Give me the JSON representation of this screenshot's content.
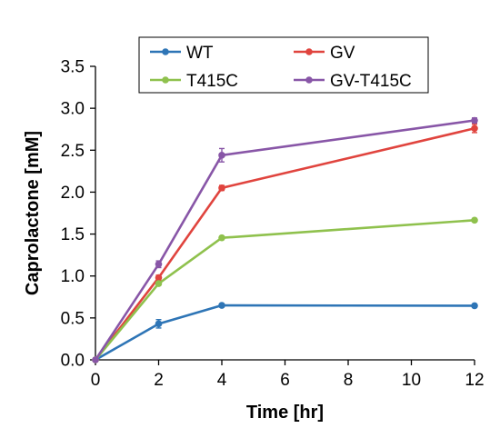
{
  "chart_data": {
    "type": "line",
    "xlabel": "Time [hr]",
    "ylabel": "Caprolactone [mM]",
    "x": [
      0,
      2,
      4,
      12
    ],
    "xlim": [
      0,
      12
    ],
    "ylim": [
      0,
      3.5
    ],
    "xticks": [
      "0",
      "2",
      "4",
      "6",
      "8",
      "10",
      "12"
    ],
    "yticks": [
      "0.0",
      "0.5",
      "1.0",
      "1.5",
      "2.0",
      "2.5",
      "3.0",
      "3.5"
    ],
    "grid": false,
    "legend_position": "top",
    "series": [
      {
        "name": "WT",
        "color": "#2e75b6",
        "values": [
          0,
          0.43,
          0.65,
          0.645
        ],
        "errors": [
          0,
          0.05,
          0.02,
          0.02
        ]
      },
      {
        "name": "GV",
        "color": "#e0443e",
        "values": [
          0,
          0.98,
          2.05,
          2.76
        ],
        "errors": [
          0,
          0.03,
          0.03,
          0.05
        ]
      },
      {
        "name": "T415C",
        "color": "#8fc14d",
        "values": [
          0,
          0.91,
          1.455,
          1.665
        ],
        "errors": [
          0,
          0.02,
          0.02,
          0.02
        ]
      },
      {
        "name": "GV-T415C",
        "color": "#8856a7",
        "values": [
          0,
          1.14,
          2.44,
          2.855
        ],
        "errors": [
          0,
          0.04,
          0.08,
          0.03
        ]
      }
    ]
  }
}
